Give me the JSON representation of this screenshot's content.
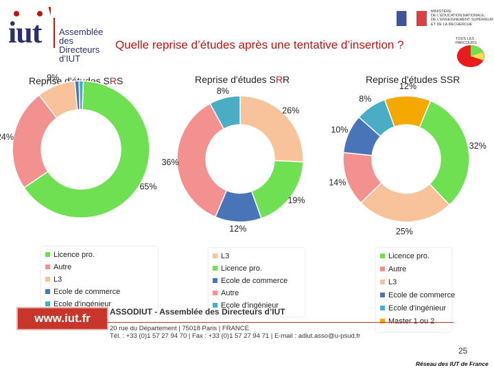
{
  "header": {
    "title": "Quelle reprise d’études après une tentative d’insertion ?",
    "logo": {
      "wordmark": "iut",
      "lines": [
        "Assemblée",
        "des Directeurs",
        "d’IUT"
      ]
    },
    "ministry": {
      "lines": [
        "MINISTÈRE",
        "DE L'ÉDUCATION NATIONALE,",
        "DE L'ENSEIGNEMENT SUPÉRIEUR",
        "ET DE LA RECHERCHE"
      ]
    },
    "mini_chart_title": "TOUS LES PARCOURS"
  },
  "colors": {
    "licence_pro": "#6ee052",
    "autre": "#f39191",
    "l3": "#f8c39a",
    "ecole_commerce": "#4a74b8",
    "ecole_ingenieur": "#4bacc6",
    "master": "#f5a800"
  },
  "chart_data": [
    {
      "type": "pie",
      "title_parts": [
        "Reprise d'études S",
        "R",
        "S"
      ],
      "title": "Reprise d'études SRS",
      "series": [
        {
          "name": "Licence pro.",
          "value": 65,
          "label": "65%"
        },
        {
          "name": "Autre",
          "value": 24,
          "label": "24%"
        },
        {
          "name": "L3",
          "value": 9,
          "label": "9%"
        },
        {
          "name": "Ecole de commerce",
          "value": 1,
          "label": ""
        },
        {
          "name": "Ecole d'ingénieur",
          "value": 1,
          "label": ""
        }
      ],
      "legend": [
        "Licence pro.",
        "Autre",
        "L3",
        "Ecole de commerce",
        "Ecole d'ingénieur"
      ]
    },
    {
      "type": "pie",
      "title_parts": [
        "Reprise d'études S",
        "R",
        "R"
      ],
      "title": "Reprise d'études SRR",
      "series": [
        {
          "name": "L3",
          "value": 26,
          "label": "26%"
        },
        {
          "name": "Licence pro.",
          "value": 19,
          "label": "19%"
        },
        {
          "name": "Ecole de commerce",
          "value": 12,
          "label": "12%"
        },
        {
          "name": "Autre",
          "value": 36,
          "label": "36%"
        },
        {
          "name": "Ecole d'ingénieur",
          "value": 8,
          "label": "8%"
        }
      ],
      "legend": [
        "L3",
        "Licence pro.",
        "Ecole de commerce",
        "Autre",
        "Ecole d'ingénieur"
      ]
    },
    {
      "type": "pie",
      "title_parts": [
        "Reprise d'études SSR",
        "",
        ""
      ],
      "title": "Reprise d'études SSR",
      "series": [
        {
          "name": "Licence pro.",
          "value": 32,
          "label": "32%"
        },
        {
          "name": "L3",
          "value": 25,
          "label": "25%"
        },
        {
          "name": "Autre",
          "value": 14,
          "label": "14%"
        },
        {
          "name": "Ecole de commerce",
          "value": 10,
          "label": "10%"
        },
        {
          "name": "Ecole d'ingénieur",
          "value": 8,
          "label": "8%"
        },
        {
          "name": "Master 1 ou 2",
          "value": 12,
          "label": "12%"
        }
      ],
      "legend": [
        "Licence pro.",
        "Autre",
        "L3",
        "Ecole de commerce",
        "Ecole d'ingénieur",
        "Master 1 ou 2"
      ]
    }
  ],
  "footer": {
    "url": "www.iut.fr",
    "assoc": "ASSODIUT - Assemblée des Directeurs d’IUT",
    "address": "20 rue du Département | 75018 Paris | FRANCE",
    "contact": "Tél. : +33 (0)1 57 27 94 70 | Fax : +33 (0)1 57 27 94 71 | E-mail : adiut.asso@u-psud.fr",
    "page": "25",
    "network": "Réseau des IUT de France"
  }
}
